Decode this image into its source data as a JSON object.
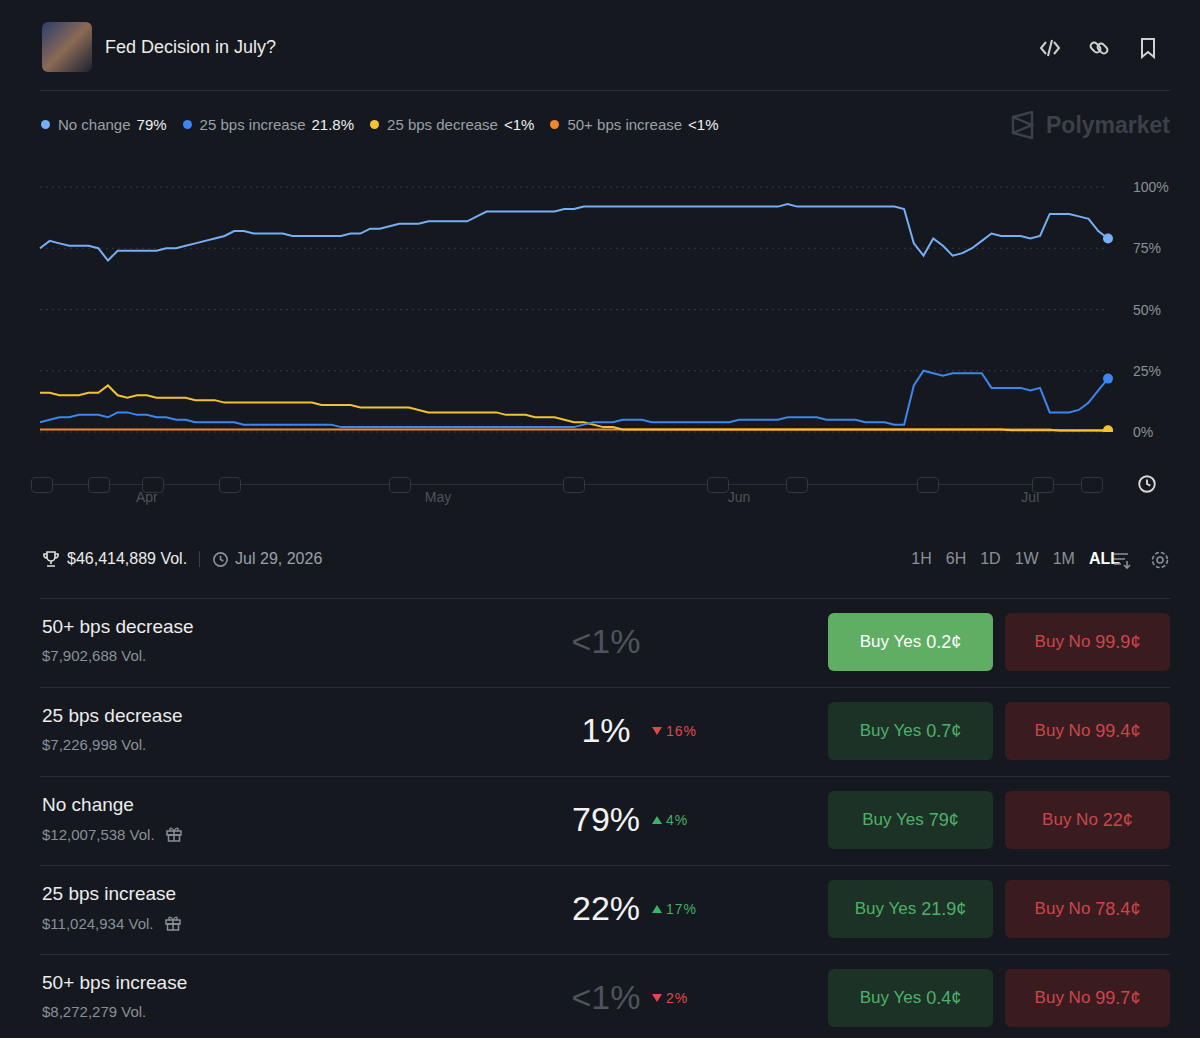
{
  "header": {
    "title": "Fed Decision in July?",
    "watermark": "Polymarket"
  },
  "legend_values": [
    "79%",
    "21.8%",
    "<1%",
    "<1%"
  ],
  "chart_data": {
    "type": "line",
    "categories": [
      null,
      null,
      null,
      null,
      null,
      null,
      null,
      null,
      null,
      null,
      null,
      "Apr",
      null,
      null,
      null,
      null,
      null,
      null,
      null,
      null,
      null,
      null,
      null,
      null,
      null,
      null,
      null,
      null,
      null,
      null,
      null,
      null,
      null,
      null,
      null,
      null,
      null,
      null,
      null,
      null,
      null,
      "May",
      null,
      null,
      null,
      null,
      null,
      null,
      null,
      null,
      null,
      null,
      null,
      null,
      null,
      null,
      null,
      null,
      null,
      null,
      null,
      null,
      null,
      null,
      null,
      null,
      null,
      null,
      null,
      null,
      null,
      null,
      "Jun",
      null,
      null,
      null,
      null,
      null,
      null,
      null,
      null,
      null,
      null,
      null,
      null,
      null,
      null,
      null,
      null,
      null,
      null,
      null,
      null,
      null,
      null,
      null,
      null,
      null,
      null,
      null,
      null,
      null,
      "Jul",
      null,
      null,
      null,
      null,
      null,
      null,
      null,
      null
    ],
    "series": [
      {
        "name": "No change",
        "color": "#77aef5",
        "values": [
          75,
          78,
          77,
          76,
          76,
          76,
          75,
          70,
          74,
          74,
          74,
          74,
          74,
          75,
          75,
          76,
          77,
          78,
          79,
          80,
          82,
          82,
          81,
          81,
          81,
          81,
          80,
          80,
          80,
          80,
          80,
          80,
          81,
          81,
          83,
          83,
          84,
          85,
          85,
          85,
          86,
          86,
          86,
          86,
          86,
          88,
          90,
          90,
          90,
          90,
          90,
          90,
          90,
          90,
          91,
          91,
          92,
          92,
          92,
          92,
          92,
          92,
          92,
          92,
          92,
          92,
          92,
          92,
          92,
          92,
          92,
          92,
          92,
          92,
          92,
          92,
          92,
          93,
          92,
          92,
          92,
          92,
          92,
          92,
          92,
          92,
          92,
          92,
          92,
          91,
          77,
          72,
          79,
          76,
          72,
          73,
          75,
          78,
          81,
          80,
          80,
          80,
          79,
          80,
          89,
          89,
          89,
          88,
          87,
          82,
          79
        ]
      },
      {
        "name": "25 bps increase",
        "color": "#3d85f0",
        "values": [
          4,
          5,
          6,
          6,
          7,
          7,
          7,
          6,
          8,
          8,
          7,
          7,
          6,
          6,
          5,
          5,
          4,
          4,
          4,
          4,
          4,
          3,
          3,
          3,
          3,
          3,
          3,
          3,
          3,
          3,
          3,
          2,
          2,
          2,
          2,
          2,
          2,
          2,
          2,
          2,
          2,
          2,
          2,
          2,
          2,
          2,
          2,
          2,
          2,
          2,
          2,
          2,
          2,
          2,
          2,
          2,
          3,
          4,
          4,
          4,
          5,
          5,
          5,
          4,
          4,
          4,
          4,
          4,
          4,
          4,
          4,
          4,
          5,
          5,
          5,
          5,
          5,
          6,
          6,
          6,
          6,
          5,
          5,
          5,
          5,
          4,
          4,
          4,
          3,
          3,
          19,
          25,
          24,
          23,
          24,
          24,
          24,
          24,
          18,
          18,
          18,
          18,
          17,
          18,
          8,
          8,
          8,
          9,
          12,
          17,
          21.8
        ]
      },
      {
        "name": "25 bps decrease",
        "color": "#f2c230",
        "values": [
          16,
          16,
          15,
          15,
          15,
          16,
          16,
          19,
          15,
          14,
          15,
          15,
          14,
          14,
          14,
          14,
          13,
          13,
          13,
          12,
          12,
          12,
          12,
          12,
          12,
          12,
          12,
          12,
          12,
          11,
          11,
          11,
          11,
          10,
          10,
          10,
          10,
          10,
          10,
          9,
          8,
          8,
          8,
          8,
          8,
          8,
          8,
          8,
          7,
          7,
          7,
          6,
          6,
          6,
          5,
          4,
          4,
          3,
          2,
          2,
          1,
          1,
          1,
          1,
          1,
          1,
          1,
          1,
          1,
          1,
          1,
          1,
          1,
          1,
          1,
          1,
          1,
          1,
          1,
          1,
          1,
          1,
          1,
          1,
          1,
          1,
          1,
          1,
          1,
          1,
          1,
          1,
          1,
          1,
          1,
          1,
          1,
          1,
          1,
          1,
          0.7,
          0.7,
          0.7,
          0.7,
          0.7,
          0.7,
          0.7,
          0.7,
          0.7,
          0.7,
          0.7
        ]
      },
      {
        "name": "50+ bps increase",
        "color": "#f0872c",
        "values": [
          1,
          1,
          1,
          1,
          1,
          1,
          1,
          1,
          1,
          1,
          1,
          1,
          1,
          1,
          1,
          1,
          1,
          1,
          1,
          1,
          1,
          1,
          1,
          1,
          1,
          1,
          1,
          1,
          1,
          1,
          1,
          1,
          1,
          1,
          1,
          1,
          1,
          1,
          1,
          1,
          1,
          1,
          1,
          1,
          1,
          1,
          1,
          1,
          1,
          1,
          1,
          1,
          1,
          1,
          1,
          1,
          1,
          1,
          1,
          1,
          1,
          1,
          1,
          1,
          1,
          1,
          1,
          1,
          1,
          1,
          1,
          1,
          1,
          1,
          1,
          1,
          1,
          1,
          1,
          1,
          1,
          1,
          1,
          1,
          1,
          1,
          1,
          1,
          1,
          1,
          1,
          1,
          1,
          1,
          1,
          1,
          1,
          1,
          1,
          1,
          1,
          1,
          1,
          1,
          1,
          0.5,
          0.5,
          0.5,
          0.5,
          0.5,
          0.4
        ]
      }
    ],
    "ylim": [
      0,
      100
    ],
    "yticks": [
      {
        "value": 0,
        "label": "0%"
      },
      {
        "value": 25,
        "label": "25%"
      },
      {
        "value": 50,
        "label": "50%"
      },
      {
        "value": 75,
        "label": "75%"
      },
      {
        "value": 100,
        "label": "100%"
      }
    ],
    "grid": true
  },
  "stats": {
    "volume": "$46,414,889 Vol.",
    "end_date": "Jul 29, 2026",
    "timeframes": [
      "1H",
      "6H",
      "1D",
      "1W",
      "1M",
      "ALL"
    ],
    "active_timeframe": "ALL"
  },
  "markets": [
    {
      "name": "50+ bps decrease",
      "volume": "$7,902,688 Vol.",
      "gift": false,
      "chance": "<1%",
      "dim": true,
      "change": null,
      "selected": true,
      "yes": {
        "label": "Buy Yes",
        "price": "0.2¢"
      },
      "no": {
        "label": "Buy No",
        "price": "99.9¢"
      }
    },
    {
      "name": "25 bps decrease",
      "volume": "$7,226,998 Vol.",
      "gift": false,
      "chance": "1%",
      "dim": false,
      "change": {
        "direction": "down",
        "label": "16%"
      },
      "selected": false,
      "yes": {
        "label": "Buy Yes",
        "price": "0.7¢"
      },
      "no": {
        "label": "Buy No",
        "price": "99.4¢"
      }
    },
    {
      "name": "No change",
      "volume": "$12,007,538 Vol.",
      "gift": true,
      "chance": "79%",
      "dim": false,
      "change": {
        "direction": "up",
        "label": "4%"
      },
      "selected": false,
      "yes": {
        "label": "Buy Yes",
        "price": "79¢"
      },
      "no": {
        "label": "Buy No",
        "price": "22¢"
      }
    },
    {
      "name": "25 bps increase",
      "volume": "$11,024,934 Vol.",
      "gift": true,
      "chance": "22%",
      "dim": false,
      "change": {
        "direction": "up",
        "label": "17%"
      },
      "selected": false,
      "yes": {
        "label": "Buy Yes",
        "price": "21.9¢"
      },
      "no": {
        "label": "Buy No",
        "price": "78.4¢"
      }
    },
    {
      "name": "50+ bps increase",
      "volume": "$8,272,279 Vol.",
      "gift": false,
      "chance": "<1%",
      "dim": true,
      "change": {
        "direction": "down",
        "label": "2%"
      },
      "selected": false,
      "yes": {
        "label": "Buy Yes",
        "price": "0.4¢"
      },
      "no": {
        "label": "Buy No",
        "price": "99.7¢"
      }
    }
  ]
}
